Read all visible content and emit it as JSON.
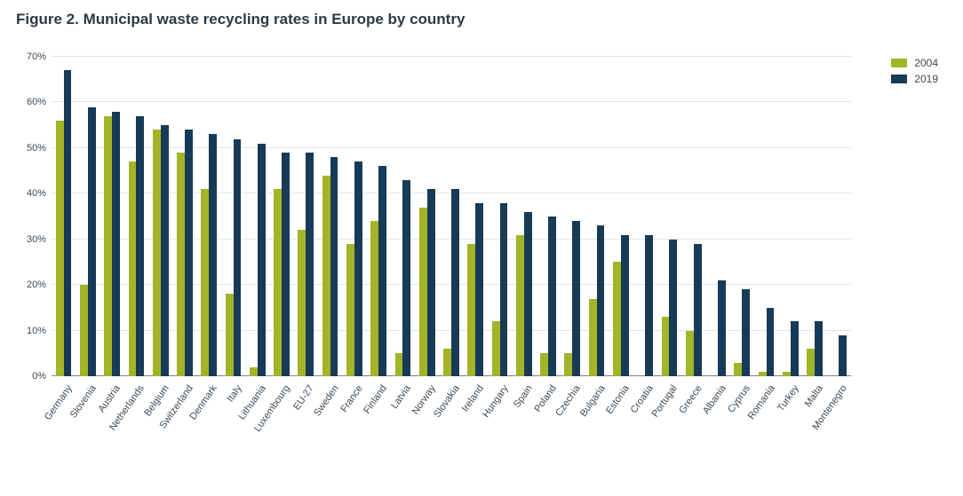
{
  "title": "Figure 2. Municipal waste recycling rates in Europe by country",
  "chart": {
    "type": "bar",
    "background_color": "#ffffff",
    "grid_color": "#e1e5e8",
    "axis_color": "#7a8690",
    "tick_font_size": 11,
    "title_font_size": 17,
    "ylim": [
      0,
      70
    ],
    "ytick_step": 10,
    "ytick_suffix": "%",
    "bar_gap_ratio": 0.35,
    "series": [
      {
        "name": "2004",
        "color": "#a2b427"
      },
      {
        "name": "2019",
        "color": "#173b56"
      }
    ],
    "categories": [
      "Germany",
      "Slovenia",
      "Austria",
      "Netherlands",
      "Belgium",
      "Switzerland",
      "Denmark",
      "Italy",
      "Lithuania",
      "Luxembourg",
      "EU-27",
      "Sweden",
      "France",
      "Finland",
      "Latvia",
      "Norway",
      "Slovakia",
      "Ireland",
      "Hungary",
      "Spain",
      "Poland",
      "Czechia",
      "Bulgaria",
      "Estonia",
      "Croatia",
      "Portugal",
      "Greece",
      "Albania",
      "Cyprus",
      "Romania",
      "Turkey",
      "Malta",
      "Montenegro"
    ],
    "values": {
      "2004": [
        56,
        20,
        57,
        47,
        54,
        49,
        41,
        18,
        2,
        41,
        32,
        44,
        29,
        34,
        5,
        37,
        6,
        29,
        12,
        31,
        5,
        5,
        17,
        25,
        0,
        13,
        10,
        0,
        3,
        1,
        1,
        6,
        0
      ],
      "2019": [
        67,
        59,
        58,
        57,
        55,
        54,
        53,
        52,
        51,
        49,
        49,
        48,
        47,
        46,
        43,
        41,
        41,
        38,
        38,
        36,
        35,
        34,
        33,
        31,
        31,
        30,
        29,
        21,
        19,
        15,
        12,
        12,
        9
      ]
    }
  },
  "legend": {
    "items": [
      {
        "label": "2004",
        "swatch": "#a2b427"
      },
      {
        "label": "2019",
        "swatch": "#173b56"
      }
    ]
  }
}
